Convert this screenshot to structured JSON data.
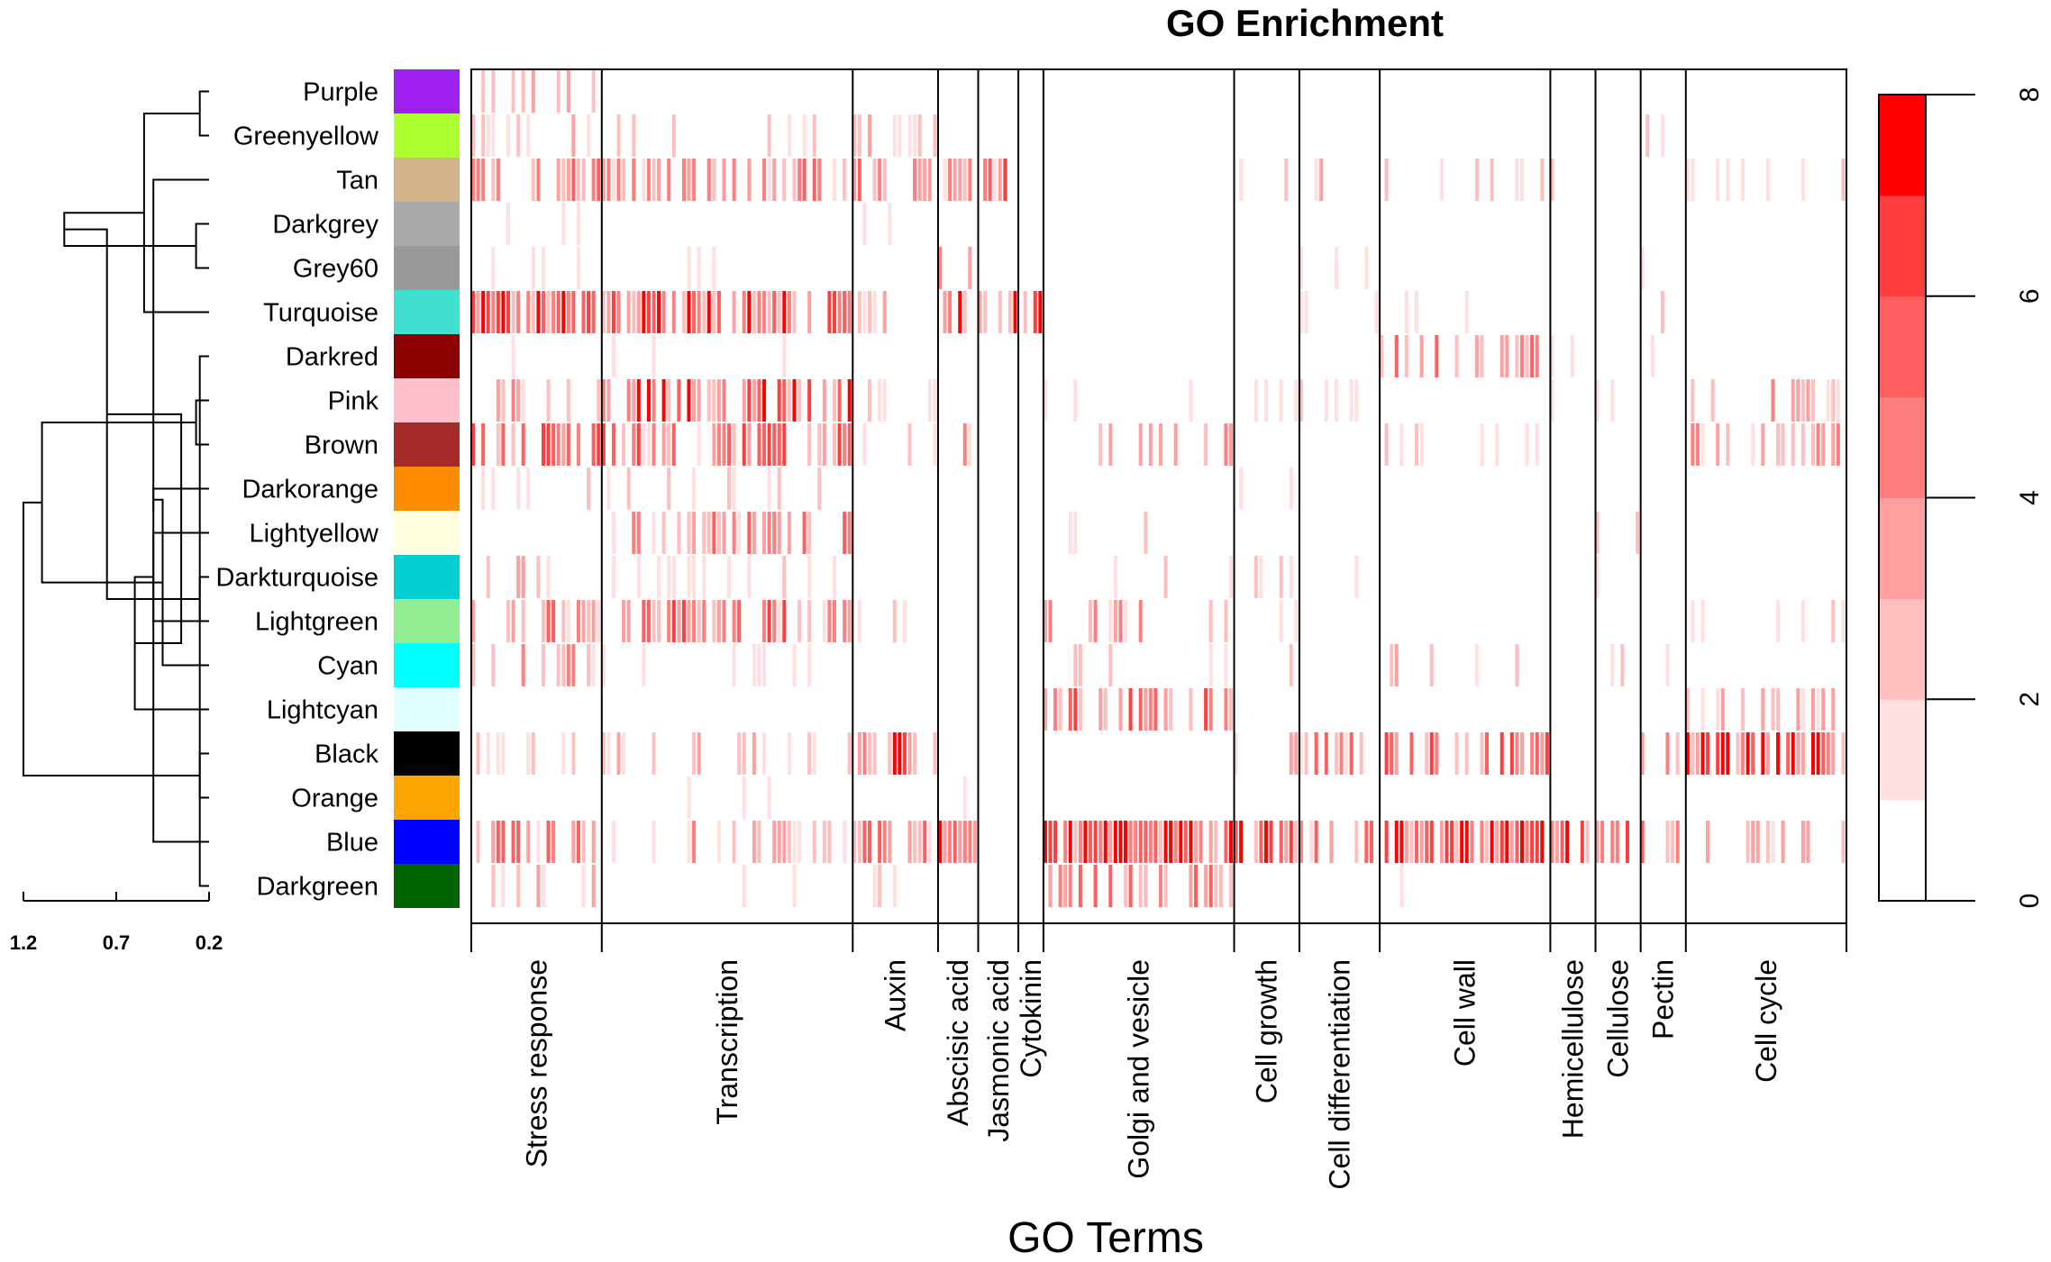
{
  "chart_data": {
    "type": "heatmap",
    "title": "GO Enrichment",
    "xlabel": "GO Terms",
    "ylabel": "",
    "modules": [
      "Purple",
      "Greenyellow",
      "Tan",
      "Darkgrey",
      "Grey60",
      "Turquoise",
      "Darkred",
      "Pink",
      "Brown",
      "Darkorange",
      "Lightyellow",
      "Darkturquoise",
      "Lightgreen",
      "Cyan",
      "Lightcyan",
      "Black",
      "Orange",
      "Blue",
      "Darkgreen"
    ],
    "module_colors": [
      "#a020f0",
      "#adff2f",
      "#d2b48c",
      "#a9a9a9",
      "#999999",
      "#40e0d0",
      "#8b0000",
      "#ffc0cb",
      "#a52a2a",
      "#ff8c00",
      "#ffffe0",
      "#00ced1",
      "#90ee90",
      "#00ffff",
      "#e0ffff",
      "#000000",
      "#ffa500",
      "#0000ff",
      "#006400"
    ],
    "categories": [
      {
        "label": "Stress response",
        "n": 26
      },
      {
        "label": "Transcription",
        "n": 50
      },
      {
        "label": "Auxin",
        "n": 17
      },
      {
        "label": "Abscisic acid",
        "n": 8
      },
      {
        "label": "Jasmonic acid",
        "n": 8
      },
      {
        "label": "Cytokinin",
        "n": 5
      },
      {
        "label": "Golgi and vesicle",
        "n": 38
      },
      {
        "label": "Cell growth",
        "n": 13
      },
      {
        "label": "Cell differentiation",
        "n": 16
      },
      {
        "label": "Cell wall",
        "n": 34
      },
      {
        "label": "Hemicellulose",
        "n": 9
      },
      {
        "label": "Cellulose",
        "n": 9
      },
      {
        "label": "Pectin",
        "n": 9
      },
      {
        "label": "Cell cycle",
        "n": 32
      }
    ],
    "enrichment_profile": [
      [
        0.3,
        0,
        0,
        0,
        0,
        0,
        0,
        0,
        0,
        0,
        0,
        0,
        0,
        0
      ],
      [
        0.3,
        0.2,
        0.3,
        0,
        0,
        0,
        0,
        0,
        0,
        0,
        0,
        0,
        0.3,
        0
      ],
      [
        0.6,
        0.6,
        0.6,
        0.6,
        0.7,
        0,
        0,
        0.3,
        0.3,
        0.2,
        0.2,
        0,
        0,
        0.2
      ],
      [
        0.1,
        0,
        0.1,
        0,
        0,
        0,
        0,
        0,
        0,
        0,
        0,
        0,
        0,
        0
      ],
      [
        0.1,
        0.1,
        0,
        0.5,
        0,
        0,
        0,
        0.1,
        0.2,
        0,
        0,
        0,
        0.2,
        0
      ],
      [
        0.9,
        0.8,
        0.3,
        0.9,
        0.9,
        0.8,
        0,
        0,
        0.3,
        0.1,
        0,
        0,
        0.3,
        0
      ],
      [
        0.1,
        0.1,
        0,
        0,
        0,
        0,
        0,
        0,
        0,
        0.6,
        0.2,
        0,
        0.6,
        0
      ],
      [
        0.5,
        0.8,
        0.3,
        0.2,
        0,
        0,
        0.1,
        0.2,
        0.2,
        0,
        0.1,
        0.2,
        0,
        0.4
      ],
      [
        0.7,
        0.7,
        0.3,
        0.5,
        0,
        0,
        0.4,
        0,
        0,
        0.2,
        0.1,
        0,
        0,
        0.5
      ],
      [
        0.2,
        0.3,
        0,
        0,
        0,
        0,
        0,
        0.3,
        0,
        0,
        0,
        0,
        0,
        0
      ],
      [
        0,
        0.6,
        0,
        0,
        0,
        0,
        0.2,
        0,
        0,
        0,
        0,
        0.3,
        0,
        0
      ],
      [
        0.4,
        0.2,
        0,
        0,
        0,
        0,
        0.2,
        0.3,
        0.1,
        0,
        0,
        0.2,
        0,
        0
      ],
      [
        0.6,
        0.7,
        0.2,
        0,
        0,
        0,
        0.5,
        0.2,
        0,
        0,
        0,
        0,
        0,
        0.2
      ],
      [
        0.5,
        0.2,
        0,
        0,
        0,
        0,
        0.2,
        0.2,
        0,
        0.4,
        0.1,
        0.3,
        0.3,
        0
      ],
      [
        0,
        0,
        0,
        0,
        0,
        0,
        0.7,
        0.2,
        0,
        0,
        0,
        0,
        0,
        0.4
      ],
      [
        0.2,
        0.3,
        0.8,
        0,
        0,
        0,
        0,
        0.4,
        0.6,
        0.7,
        0,
        0,
        0.4,
        0.95
      ],
      [
        0,
        0.1,
        0,
        0.2,
        0,
        0,
        0,
        0,
        0,
        0,
        0,
        0,
        0,
        0
      ],
      [
        0.7,
        0.4,
        0.7,
        0.8,
        0,
        0,
        0.95,
        0.9,
        0.6,
        0.95,
        0.9,
        0.8,
        0.6,
        0.4
      ],
      [
        0.4,
        0.1,
        0.2,
        0,
        0,
        0,
        0.6,
        0,
        0,
        0.1,
        0,
        0,
        0,
        0
      ]
    ],
    "legend": {
      "ticks": [
        "0",
        "2",
        "4",
        "6",
        "8"
      ],
      "vmin": 0,
      "vmax": 8,
      "colors": [
        "#ffffff",
        "#ffdfdf",
        "#ffbfbf",
        "#ff9f9f",
        "#ff7f7f",
        "#ff5f5f",
        "#ff3f3f",
        "#ff0000"
      ]
    },
    "dendrogram": {
      "axis_ticks": [
        "1.2",
        "0.7",
        "0.2"
      ],
      "xlim": [
        1.2,
        0.2
      ],
      "join_heights": [
        0.25,
        0.27,
        0.5,
        0.25,
        0.55,
        0.27,
        0.5,
        0.5,
        0.98,
        0.25,
        0.45,
        0.6,
        0.25,
        0.75,
        1.1,
        0.35,
        1.2
      ]
    }
  }
}
